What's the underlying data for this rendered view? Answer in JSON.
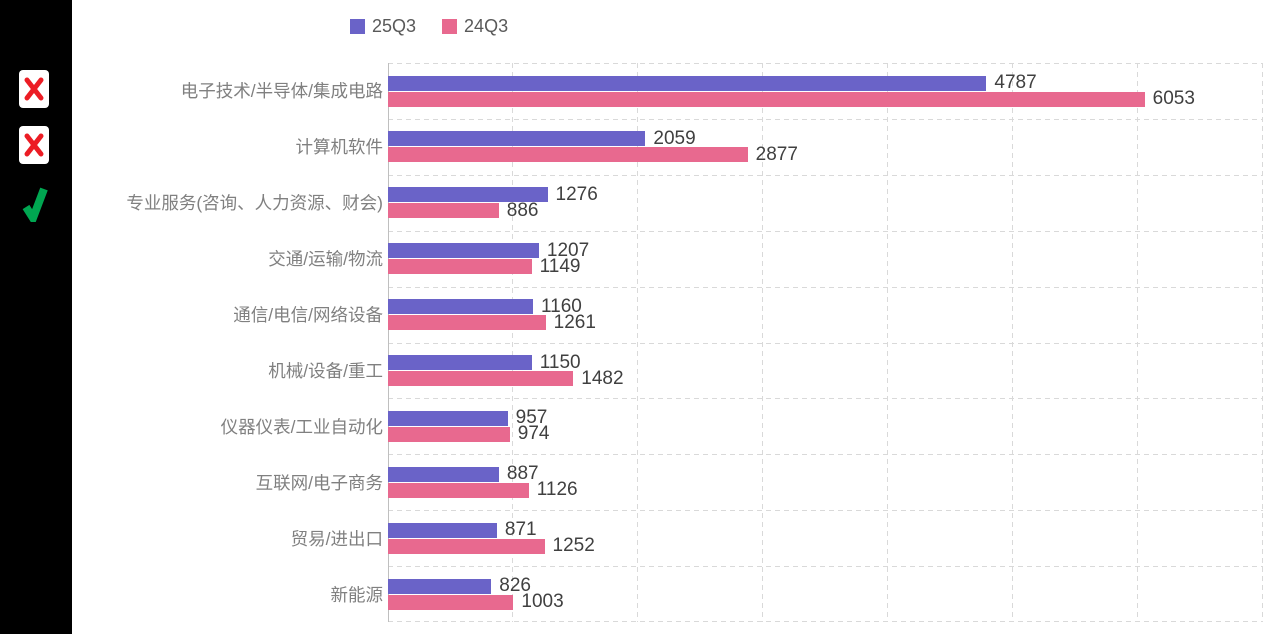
{
  "page": {
    "background": "#ffffff"
  },
  "sidebar": {
    "background": "#000000",
    "cross_color": "#EC1C24",
    "check_color": "#00A651",
    "marks": [
      {
        "row": 0,
        "type": "cross"
      },
      {
        "row": 1,
        "type": "cross"
      },
      {
        "row": 2,
        "type": "check"
      }
    ]
  },
  "legend": {
    "items": [
      {
        "label": "25Q3",
        "color": "#6A63C8"
      },
      {
        "label": "24Q3",
        "color": "#E8698F"
      }
    ]
  },
  "chart_data": {
    "type": "bar",
    "orientation": "horizontal",
    "title": "",
    "xlabel": "",
    "ylabel": "",
    "categories": [
      "电子技术/半导体/集成电路",
      "计算机软件",
      "专业服务(咨询、人力资源、财会)",
      "交通/运输/物流",
      "通信/电信/网络设备",
      "机械/设备/重工",
      "仪器仪表/工业自动化",
      "互联网/电子商务",
      "贸易/进出口",
      "新能源"
    ],
    "series": [
      {
        "name": "25Q3",
        "color": "#6A63C8",
        "values": [
          4787,
          2059,
          1276,
          1207,
          1160,
          1150,
          957,
          887,
          871,
          826
        ]
      },
      {
        "name": "24Q3",
        "color": "#E8698F",
        "values": [
          6053,
          2877,
          886,
          1149,
          1261,
          1482,
          974,
          1126,
          1252,
          1003
        ]
      }
    ],
    "xlim": [
      0,
      7000
    ],
    "gridline_interval": 1000,
    "grid": "dashed",
    "legend_position": "top",
    "value_labels": true
  },
  "styles": {
    "category_label_color": "#808080",
    "value_label_color": "#404040",
    "legend_text_color": "#595959",
    "gridline_color": "#D9D9D9",
    "axis_line_color": "#BFBFBF"
  }
}
